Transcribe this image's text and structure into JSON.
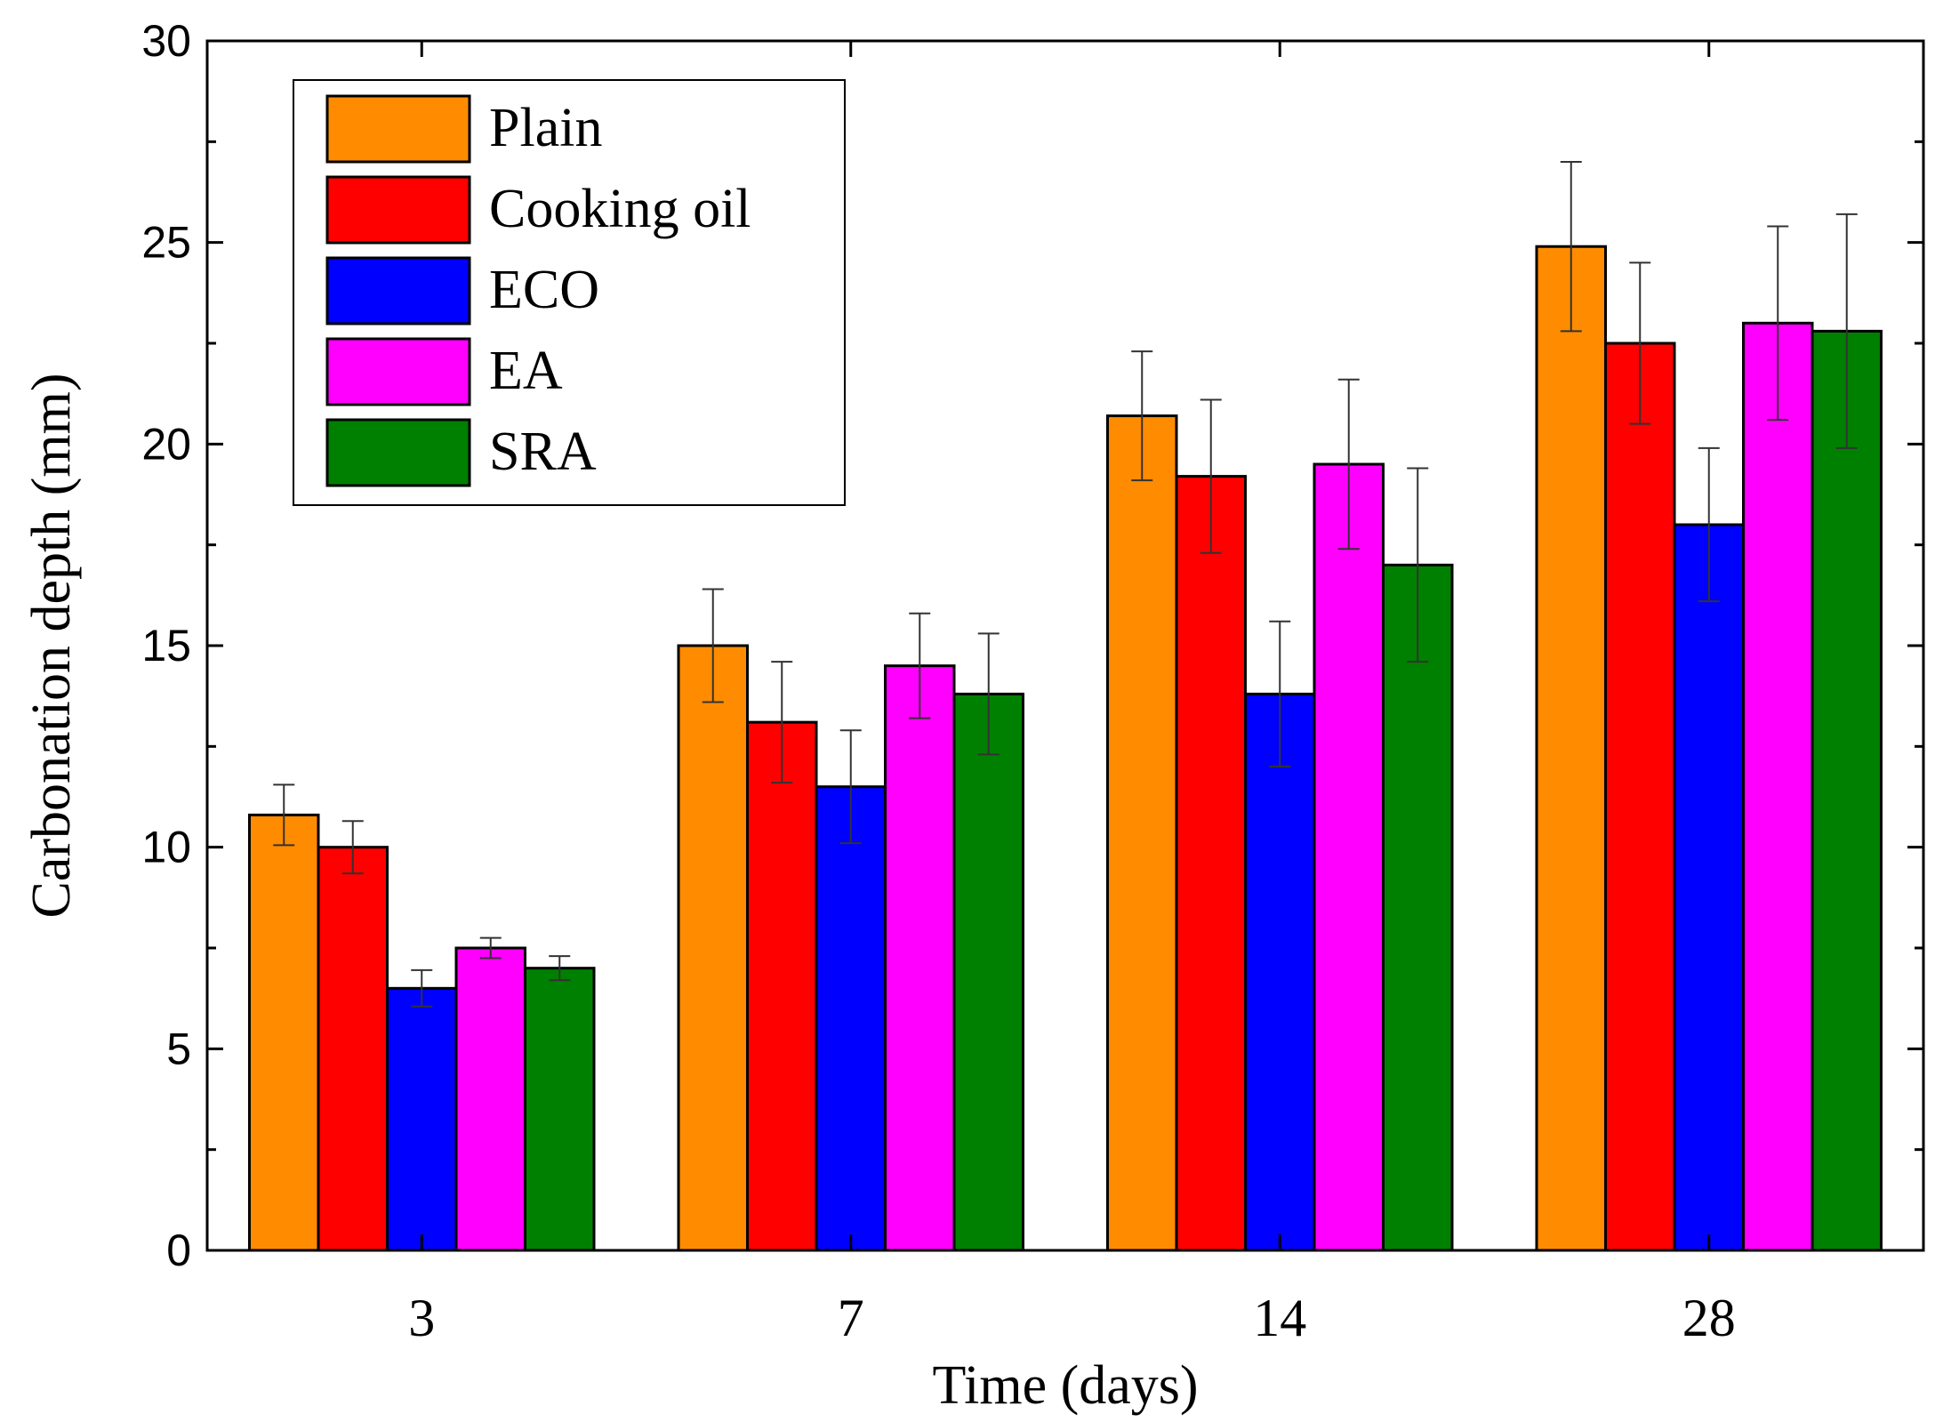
{
  "chart_data": {
    "type": "bar",
    "title": "",
    "xlabel": "Time (days)",
    "ylabel": "Carbonation depth (mm)",
    "categories": [
      "3",
      "7",
      "14",
      "28"
    ],
    "ylim": [
      0,
      30
    ],
    "yticks": [
      "0",
      "5",
      "10",
      "15",
      "20",
      "25",
      "30"
    ],
    "legend_position": "top-left",
    "series": [
      {
        "name": "Plain",
        "color": "#ff8c00",
        "values": [
          10.8,
          15.0,
          20.7,
          24.9
        ],
        "errors": [
          0.75,
          1.4,
          1.6,
          2.1
        ]
      },
      {
        "name": "Cooking oil",
        "color": "#ff0000",
        "values": [
          10.0,
          13.1,
          19.2,
          22.5
        ],
        "errors": [
          0.65,
          1.5,
          1.9,
          2.0
        ]
      },
      {
        "name": "ECO",
        "color": "#0000ff",
        "values": [
          6.5,
          11.5,
          13.8,
          18.0
        ],
        "errors": [
          0.45,
          1.4,
          1.8,
          1.9
        ]
      },
      {
        "name": "EA",
        "color": "#ff00ff",
        "values": [
          7.5,
          14.5,
          19.5,
          23.0
        ],
        "errors": [
          0.25,
          1.3,
          2.1,
          2.4
        ]
      },
      {
        "name": "SRA",
        "color": "#008000",
        "values": [
          7.0,
          13.8,
          17.0,
          22.8
        ],
        "errors": [
          0.3,
          1.5,
          2.4,
          2.9
        ]
      }
    ]
  }
}
